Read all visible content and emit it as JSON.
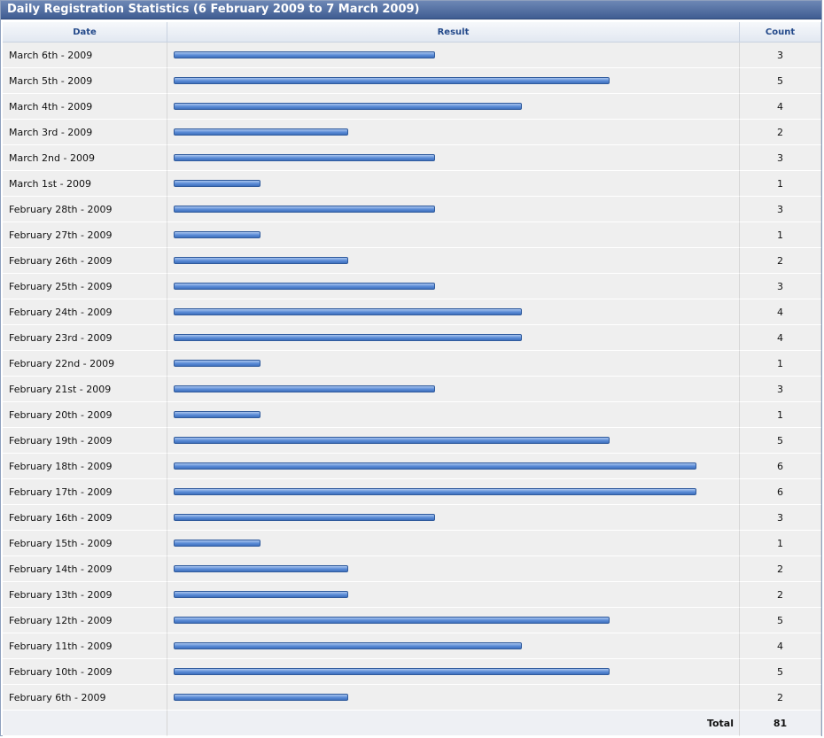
{
  "title": "Daily Registration Statistics (6 February 2009 to 7 March 2009)",
  "columns": {
    "date": "Date",
    "result": "Result",
    "count": "Count"
  },
  "max_count": 6,
  "rows": [
    {
      "date": "March 6th - 2009",
      "count": 3
    },
    {
      "date": "March 5th - 2009",
      "count": 5
    },
    {
      "date": "March 4th - 2009",
      "count": 4
    },
    {
      "date": "March 3rd - 2009",
      "count": 2
    },
    {
      "date": "March 2nd - 2009",
      "count": 3
    },
    {
      "date": "March 1st - 2009",
      "count": 1
    },
    {
      "date": "February 28th - 2009",
      "count": 3
    },
    {
      "date": "February 27th - 2009",
      "count": 1
    },
    {
      "date": "February 26th - 2009",
      "count": 2
    },
    {
      "date": "February 25th - 2009",
      "count": 3
    },
    {
      "date": "February 24th - 2009",
      "count": 4
    },
    {
      "date": "February 23rd - 2009",
      "count": 4
    },
    {
      "date": "February 22nd - 2009",
      "count": 1
    },
    {
      "date": "February 21st - 2009",
      "count": 3
    },
    {
      "date": "February 20th - 2009",
      "count": 1
    },
    {
      "date": "February 19th - 2009",
      "count": 5
    },
    {
      "date": "February 18th - 2009",
      "count": 6
    },
    {
      "date": "February 17th - 2009",
      "count": 6
    },
    {
      "date": "February 16th - 2009",
      "count": 3
    },
    {
      "date": "February 15th - 2009",
      "count": 1
    },
    {
      "date": "February 14th - 2009",
      "count": 2
    },
    {
      "date": "February 13th - 2009",
      "count": 2
    },
    {
      "date": "February 12th - 2009",
      "count": 5
    },
    {
      "date": "February 11th - 2009",
      "count": 4
    },
    {
      "date": "February 10th - 2009",
      "count": 5
    },
    {
      "date": "February 6th - 2009",
      "count": 2
    }
  ],
  "total_label": "Total",
  "total": "81"
}
